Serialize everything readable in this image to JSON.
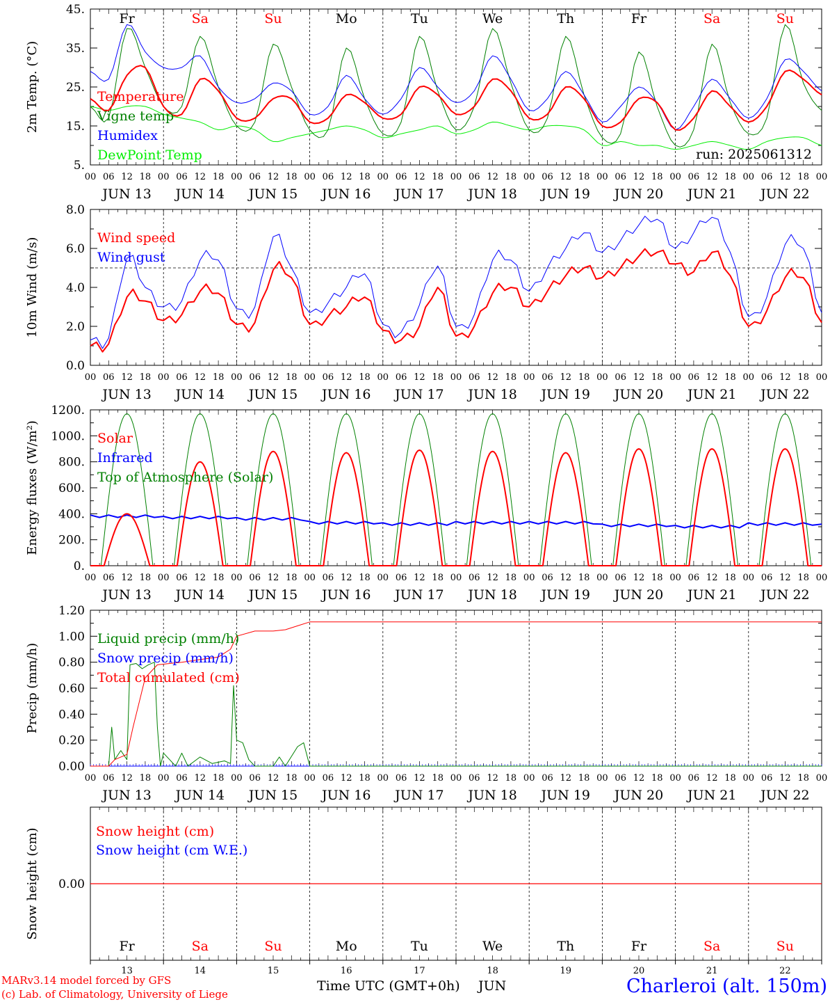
{
  "chart_data": [
    {
      "type": "line",
      "ylabel": "2m Temp. (°C)",
      "ylim": [
        5,
        45
      ],
      "yticks": [
        "5.",
        "15.",
        "25.",
        "35.",
        "45."
      ],
      "ytick_values": [
        5,
        15,
        25,
        35,
        45
      ],
      "hours": [
        0,
        6,
        12,
        18,
        24,
        30,
        36,
        42,
        48,
        54,
        60,
        66,
        72,
        78,
        84,
        90,
        96,
        102,
        108,
        114,
        120,
        126,
        132,
        138,
        144,
        150,
        156,
        162,
        168,
        174,
        180,
        186,
        192,
        198,
        204,
        210,
        216,
        222,
        228,
        234,
        240
      ],
      "annotation": "run: 2025061312",
      "series": [
        {
          "name": "Temperature",
          "color": "#ff0000",
          "width": 2,
          "values": [
            22,
            19,
            28,
            30,
            20,
            18,
            27,
            24,
            17,
            17,
            22,
            22,
            16,
            17,
            23,
            21,
            17,
            18,
            25,
            23,
            18,
            20,
            27,
            24,
            17,
            18,
            25,
            22,
            15,
            16,
            22,
            21,
            14,
            17,
            24,
            20,
            16,
            20,
            29,
            27,
            23
          ]
        },
        {
          "name": "Vigne temp",
          "color": "#008000",
          "width": 1,
          "values": [
            20,
            17,
            40,
            30,
            20,
            20,
            38,
            25,
            15,
            16,
            36,
            25,
            14,
            14,
            35,
            22,
            13,
            16,
            38,
            24,
            14,
            20,
            40,
            26,
            14,
            17,
            38,
            23,
            12,
            13,
            34,
            20,
            10,
            14,
            36,
            21,
            13,
            17,
            41,
            26,
            19
          ]
        },
        {
          "name": "Humidex",
          "color": "#0000ff",
          "width": 1,
          "values": [
            29,
            27,
            41,
            34,
            30,
            30,
            33,
            25,
            21,
            22,
            26,
            24,
            18,
            20,
            28,
            22,
            18,
            22,
            30,
            25,
            21,
            24,
            33,
            27,
            19,
            22,
            29,
            23,
            16,
            20,
            25,
            21,
            14,
            20,
            27,
            22,
            17,
            22,
            32,
            29,
            24
          ]
        },
        {
          "name": "DewPoint Temp",
          "color": "#00ee00",
          "width": 1,
          "values": [
            20,
            19,
            20,
            20,
            18,
            17,
            16,
            14,
            15,
            14,
            11,
            12,
            13,
            14,
            15,
            14,
            12,
            13,
            14,
            15,
            13,
            14,
            16,
            15,
            14,
            15,
            15,
            14,
            10,
            11,
            10,
            10,
            9,
            10,
            11,
            10,
            9,
            11,
            12,
            12,
            10
          ]
        }
      ]
    },
    {
      "type": "line",
      "ylabel": "10m Wind (m/s)",
      "ylim": [
        0,
        8
      ],
      "yticks": [
        "0.0",
        "2.0",
        "4.0",
        "6.0",
        "8.0"
      ],
      "ytick_values": [
        0,
        2,
        4,
        6,
        8
      ],
      "reference_line": 5,
      "hours": [
        0,
        6,
        12,
        18,
        24,
        30,
        36,
        42,
        48,
        54,
        60,
        66,
        72,
        78,
        84,
        90,
        96,
        102,
        108,
        114,
        120,
        126,
        132,
        138,
        144,
        150,
        156,
        162,
        168,
        174,
        180,
        186,
        192,
        198,
        204,
        210,
        216,
        222,
        228,
        234,
        240
      ],
      "series": [
        {
          "name": "Wind speed",
          "color": "#ff0000",
          "width": 2,
          "values": [
            1.0,
            1.1,
            3.5,
            3.3,
            2.3,
            2.6,
            3.8,
            3.7,
            2.1,
            2.2,
            4.9,
            4.5,
            2.1,
            2.5,
            3.0,
            3.5,
            1.8,
            1.3,
            2.0,
            4.0,
            1.5,
            2.0,
            3.7,
            4.0,
            3.0,
            3.8,
            4.6,
            5.0,
            4.5,
            5.0,
            5.6,
            5.8,
            5.2,
            4.8,
            5.8,
            4.6,
            2.0,
            2.8,
            4.5,
            4.5,
            2.2
          ]
        },
        {
          "name": "Wind gust",
          "color": "#0000ff",
          "width": 1,
          "values": [
            1.3,
            1.4,
            5.5,
            4.0,
            3.0,
            3.3,
            5.4,
            5.4,
            2.9,
            3.0,
            6.6,
            5.0,
            2.7,
            3.2,
            4.0,
            4.7,
            2.1,
            1.7,
            3.1,
            5.1,
            2.0,
            2.6,
            5.4,
            5.4,
            3.8,
            5.0,
            6.0,
            6.8,
            5.8,
            6.4,
            7.2,
            7.5,
            6.0,
            6.8,
            7.6,
            5.8,
            2.5,
            3.5,
            6.2,
            6.0,
            2.7
          ]
        }
      ]
    },
    {
      "type": "line",
      "ylabel": "Energy fluxes (W/m²)",
      "ylim": [
        0,
        1200
      ],
      "yticks": [
        "0.",
        "200.",
        "400.",
        "600.",
        "800.",
        "1000.",
        "1200."
      ],
      "ytick_values": [
        0,
        200,
        400,
        600,
        800,
        1000,
        1200
      ],
      "series": [
        {
          "name": "Solar",
          "color": "#ff0000",
          "width": 2,
          "daily_peak": [
            400,
            800,
            880,
            870,
            890,
            880,
            870,
            900,
            900,
            900
          ]
        },
        {
          "name": "Infrared",
          "color": "#0000ff",
          "width": 2,
          "daily_mean": [
            380,
            370,
            360,
            330,
            320,
            330,
            330,
            310,
            300,
            320
          ]
        },
        {
          "name": "Top of Atmosphere (Solar)",
          "color": "#008000",
          "width": 1,
          "daily_peak": [
            1170,
            1170,
            1170,
            1170,
            1170,
            1170,
            1170,
            1170,
            1170,
            1170
          ]
        }
      ]
    },
    {
      "type": "line",
      "ylabel": "Precip (mm/h)",
      "ylim": [
        0,
        1.2
      ],
      "yticks": [
        "0.00",
        "0.20",
        "0.40",
        "0.60",
        "0.80",
        "1.00",
        "1.20"
      ],
      "ytick_values": [
        0,
        0.2,
        0.4,
        0.6,
        0.8,
        1.0,
        1.2
      ],
      "series": [
        {
          "name": "Liquid precip (mm/h)",
          "color": "#008000",
          "width": 1,
          "points": [
            [
              0,
              0
            ],
            [
              6,
              0
            ],
            [
              7,
              0.3
            ],
            [
              8,
              0.05
            ],
            [
              10,
              0.12
            ],
            [
              12,
              0.05
            ],
            [
              13,
              0.78
            ],
            [
              15,
              0.79
            ],
            [
              17,
              0.75
            ],
            [
              19,
              0.78
            ],
            [
              21,
              0.8
            ],
            [
              22,
              0.3
            ],
            [
              23,
              0
            ],
            [
              24,
              0.1
            ],
            [
              26,
              0.05
            ],
            [
              28,
              0
            ],
            [
              30,
              0.1
            ],
            [
              32,
              0
            ],
            [
              36,
              0.07
            ],
            [
              40,
              0.02
            ],
            [
              44,
              0.04
            ],
            [
              46,
              0.02
            ],
            [
              47,
              0.62
            ],
            [
              48,
              0.2
            ],
            [
              50,
              0.18
            ],
            [
              52,
              0.05
            ],
            [
              54,
              0
            ],
            [
              60,
              0
            ],
            [
              62,
              0.07
            ],
            [
              64,
              0
            ],
            [
              68,
              0.15
            ],
            [
              70,
              0.18
            ],
            [
              72,
              0
            ],
            [
              240,
              0
            ]
          ]
        },
        {
          "name": "Snow precip (mm/h)",
          "color": "#0000ff",
          "width": 1,
          "points": [
            [
              0,
              0
            ],
            [
              240,
              0
            ]
          ]
        },
        {
          "name": "Total cumulated (cm)",
          "color": "#ff0000",
          "width": 1,
          "points": [
            [
              0,
              0
            ],
            [
              6,
              0
            ],
            [
              8,
              0.05
            ],
            [
              12,
              0.09
            ],
            [
              14,
              0.3
            ],
            [
              18,
              0.68
            ],
            [
              22,
              0.78
            ],
            [
              30,
              0.8
            ],
            [
              36,
              0.82
            ],
            [
              42,
              0.84
            ],
            [
              46,
              0.9
            ],
            [
              48,
              1.0
            ],
            [
              54,
              1.04
            ],
            [
              60,
              1.04
            ],
            [
              64,
              1.05
            ],
            [
              68,
              1.08
            ],
            [
              72,
              1.11
            ],
            [
              240,
              1.11
            ]
          ]
        }
      ]
    },
    {
      "type": "line",
      "ylabel": "Snow height (cm)",
      "yticks": [
        "0.00"
      ],
      "series": [
        {
          "name": "Snow height (cm)",
          "color": "#ff0000",
          "values": [
            0,
            0
          ]
        },
        {
          "name": "Snow height (cm W.E.)",
          "color": "#0000ff",
          "values": [
            0,
            0
          ]
        }
      ]
    }
  ],
  "days": [
    "Fr",
    "Sa",
    "Su",
    "Mo",
    "Tu",
    "We",
    "Th",
    "Fr",
    "Sa",
    "Su"
  ],
  "weekend_days": [
    1,
    2,
    8,
    9
  ],
  "day_numbers": [
    "13",
    "14",
    "15",
    "16",
    "17",
    "18",
    "19",
    "20",
    "21",
    "22"
  ],
  "date_labels": [
    "JUN 13",
    "JUN 14",
    "JUN 15",
    "JUN 16",
    "JUN 17",
    "JUN 18",
    "JUN 19",
    "JUN 20",
    "JUN 21",
    "JUN 22"
  ],
  "hour_labels": [
    "00",
    "06",
    "12",
    "18"
  ],
  "hour_label_end": "00",
  "x_axis_title": "Time UTC (GMT+0h)",
  "month_label": "JUN",
  "footer": {
    "model_line": "MARv3.14 model forced by GFS",
    "credit_line": "(c) Lab. of Climatology, University of Liege",
    "station": "Charleroi (alt. 150m)"
  },
  "colors": {
    "weekend": "#ff0000",
    "weekday": "#000000",
    "station": "#0000ff",
    "footer": "#ff0000"
  }
}
